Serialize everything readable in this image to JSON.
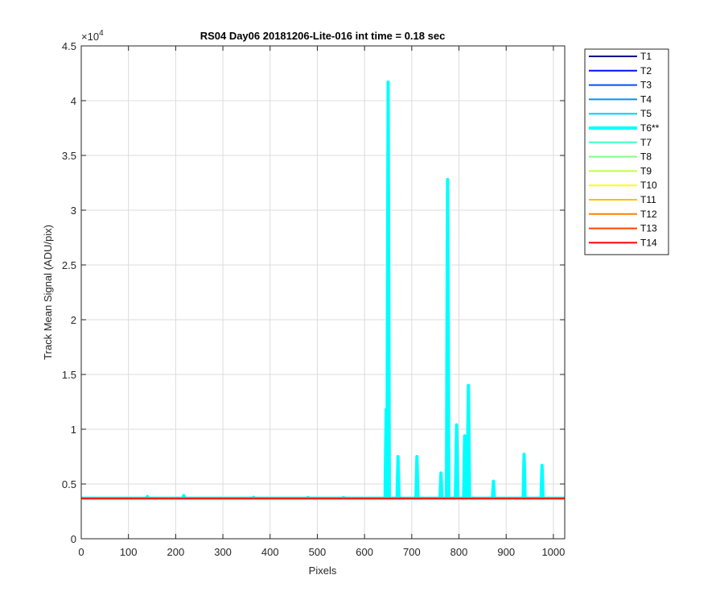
{
  "chart_data": {
    "type": "line",
    "title": "RS04 Day06 20181206-Lite-016 int time = 0.18 sec",
    "xlabel": "Pixels",
    "ylabel": "Track Mean Signal (ADU/pix)",
    "y_exponent_label": "×10",
    "y_exponent": "4",
    "xlim": [
      0,
      1024
    ],
    "ylim": [
      0,
      45000
    ],
    "xticks": [
      0,
      100,
      200,
      300,
      400,
      500,
      600,
      700,
      800,
      900,
      1000
    ],
    "xtick_labels": [
      "0",
      "100",
      "200",
      "300",
      "400",
      "500",
      "600",
      "700",
      "800",
      "900",
      "1000"
    ],
    "yticks": [
      0,
      5000,
      10000,
      15000,
      20000,
      25000,
      30000,
      35000,
      40000,
      45000
    ],
    "ytick_labels": [
      "0",
      "0.5",
      "1",
      "1.5",
      "2",
      "2.5",
      "3",
      "3.5",
      "4",
      "4.5"
    ],
    "grid": true,
    "legend_position": "outside-right-top",
    "baseline_value": 3700,
    "series": [
      {
        "name": "T1",
        "color": "#00008f",
        "baseline": 3740
      },
      {
        "name": "T2",
        "color": "#0010ff",
        "baseline": 3730
      },
      {
        "name": "T3",
        "color": "#0050ff",
        "baseline": 3720
      },
      {
        "name": "T4",
        "color": "#0090ff",
        "baseline": 3715
      },
      {
        "name": "T5",
        "color": "#00cfff",
        "baseline": 3710
      },
      {
        "name": "T6**",
        "color": "#00ffff",
        "highlight": true,
        "baseline": 3700,
        "peaks": [
          [
            140,
            3850
          ],
          [
            217,
            3950
          ],
          [
            365,
            3780
          ],
          [
            480,
            3760
          ],
          [
            555,
            3760
          ],
          [
            646,
            11800
          ],
          [
            650,
            41700
          ],
          [
            671,
            7500
          ],
          [
            711,
            7500
          ],
          [
            762,
            6000
          ],
          [
            776,
            32800
          ],
          [
            795,
            10400
          ],
          [
            812,
            9400
          ],
          [
            820,
            14000
          ],
          [
            873,
            5250
          ],
          [
            938,
            7700
          ],
          [
            976,
            6700
          ]
        ]
      },
      {
        "name": "T7",
        "color": "#40ffbf",
        "baseline": 3705
      },
      {
        "name": "T8",
        "color": "#80ff80",
        "baseline": 3700
      },
      {
        "name": "T9",
        "color": "#bfff40",
        "baseline": 3700
      },
      {
        "name": "T10",
        "color": "#ffff00",
        "baseline": 3695
      },
      {
        "name": "T11",
        "color": "#ffbf00",
        "baseline": 3690
      },
      {
        "name": "T12",
        "color": "#ff8000",
        "baseline": 3685
      },
      {
        "name": "T13",
        "color": "#ff4000",
        "baseline": 3680
      },
      {
        "name": "T14",
        "color": "#ff0000",
        "baseline": 3690
      }
    ]
  }
}
